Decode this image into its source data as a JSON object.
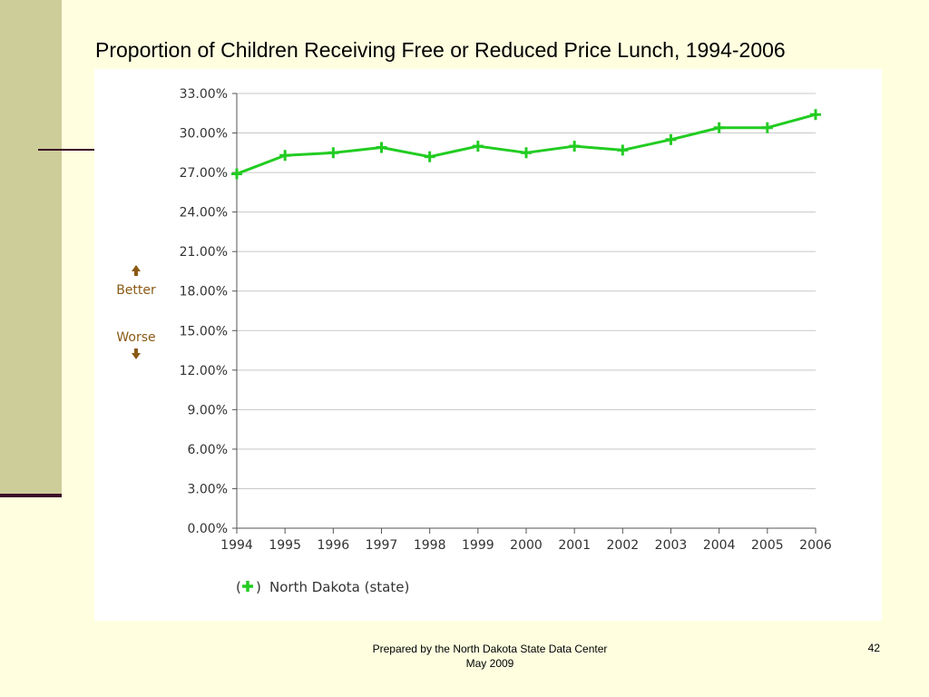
{
  "slide": {
    "title": "Proportion of Children Receiving Free or Reduced Price Lunch, 1994-2006",
    "footer_line1": "Prepared by the North Dakota State Data Center",
    "footer_line2": "May 2009",
    "page_number": "42"
  },
  "colors": {
    "background": "#ffffe0",
    "sidebar": "#cdcd9a",
    "accent": "#3c0a28",
    "series": "#22cc22",
    "direction": "#8a5a14"
  },
  "chart_data": {
    "type": "line",
    "title": "",
    "xlabel": "",
    "ylabel": "",
    "x": [
      "1994",
      "1995",
      "1996",
      "1997",
      "1998",
      "1999",
      "2000",
      "2001",
      "2002",
      "2003",
      "2004",
      "2005",
      "2006"
    ],
    "series": [
      {
        "name": "North Dakota (state)",
        "values": [
          26.9,
          28.3,
          28.5,
          28.9,
          28.2,
          29.0,
          28.5,
          29.0,
          28.7,
          29.5,
          30.4,
          30.4,
          31.4
        ]
      }
    ],
    "ylim": [
      0,
      33
    ],
    "yticks": [
      "0.00%",
      "3.00%",
      "6.00%",
      "9.00%",
      "12.00%",
      "15.00%",
      "18.00%",
      "21.00%",
      "24.00%",
      "27.00%",
      "30.00%",
      "33.00%"
    ],
    "ytick_values": [
      0,
      3,
      6,
      9,
      12,
      15,
      18,
      21,
      24,
      27,
      30,
      33
    ],
    "grid": true,
    "legend_position": "bottom-left",
    "direction_labels": {
      "up": "Better",
      "down": "Worse"
    },
    "legend_prefix": "(",
    "legend_suffix": ")"
  }
}
